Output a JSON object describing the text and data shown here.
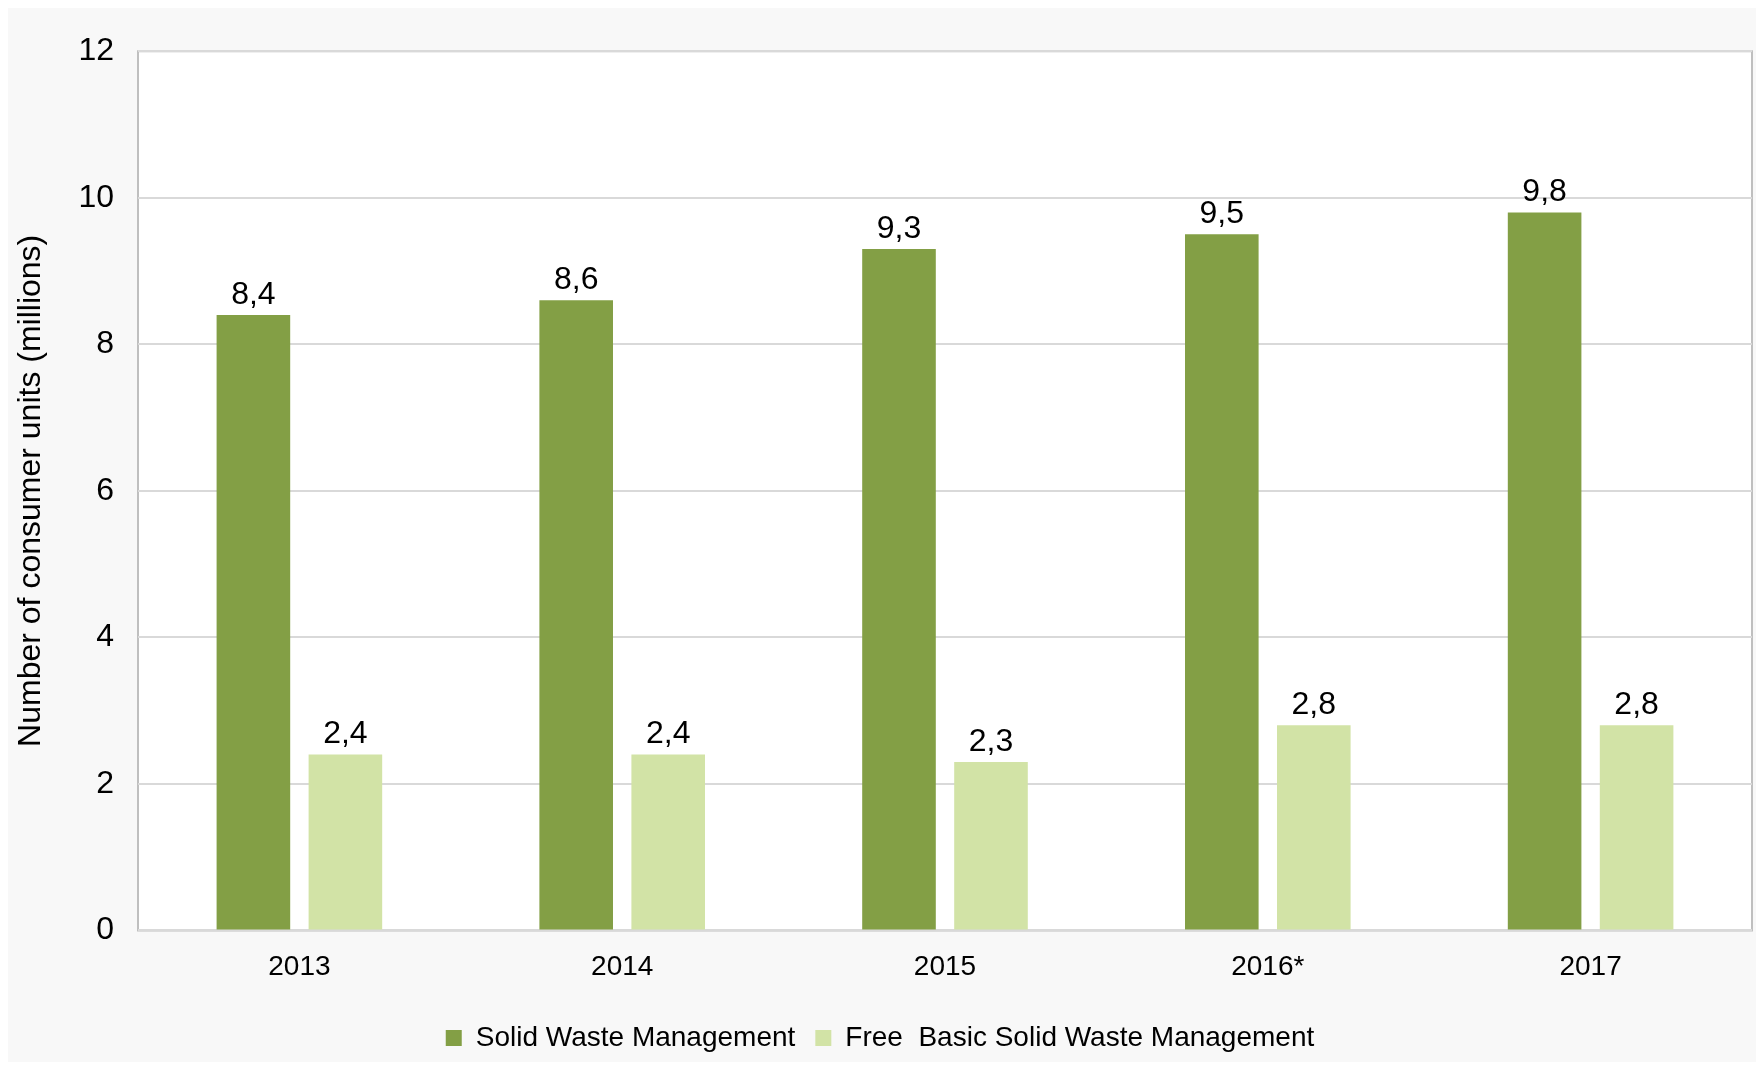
{
  "chart_data": {
    "type": "bar",
    "ylabel": "Number of consumer units (millions)",
    "categories": [
      "2013",
      "2014",
      "2015",
      "2016*",
      "2017"
    ],
    "series": [
      {
        "name": "Solid Waste Management",
        "color": "#839f45",
        "values": [
          8.4,
          8.6,
          9.3,
          9.5,
          9.8
        ],
        "value_labels": [
          "8,4",
          "8,6",
          "9,3",
          "9,5",
          "9,8"
        ]
      },
      {
        "name": "Free  Basic Solid Waste Management",
        "color": "#d2e3a6",
        "values": [
          2.4,
          2.4,
          2.3,
          2.8,
          2.8
        ],
        "value_labels": [
          "2,4",
          "2,4",
          "2,3",
          "2,8",
          "2,8"
        ]
      }
    ],
    "ylim": [
      0,
      12
    ],
    "yticks": [
      0,
      2,
      4,
      6,
      8,
      10,
      12
    ],
    "grid": "y",
    "legend": "bottom"
  }
}
